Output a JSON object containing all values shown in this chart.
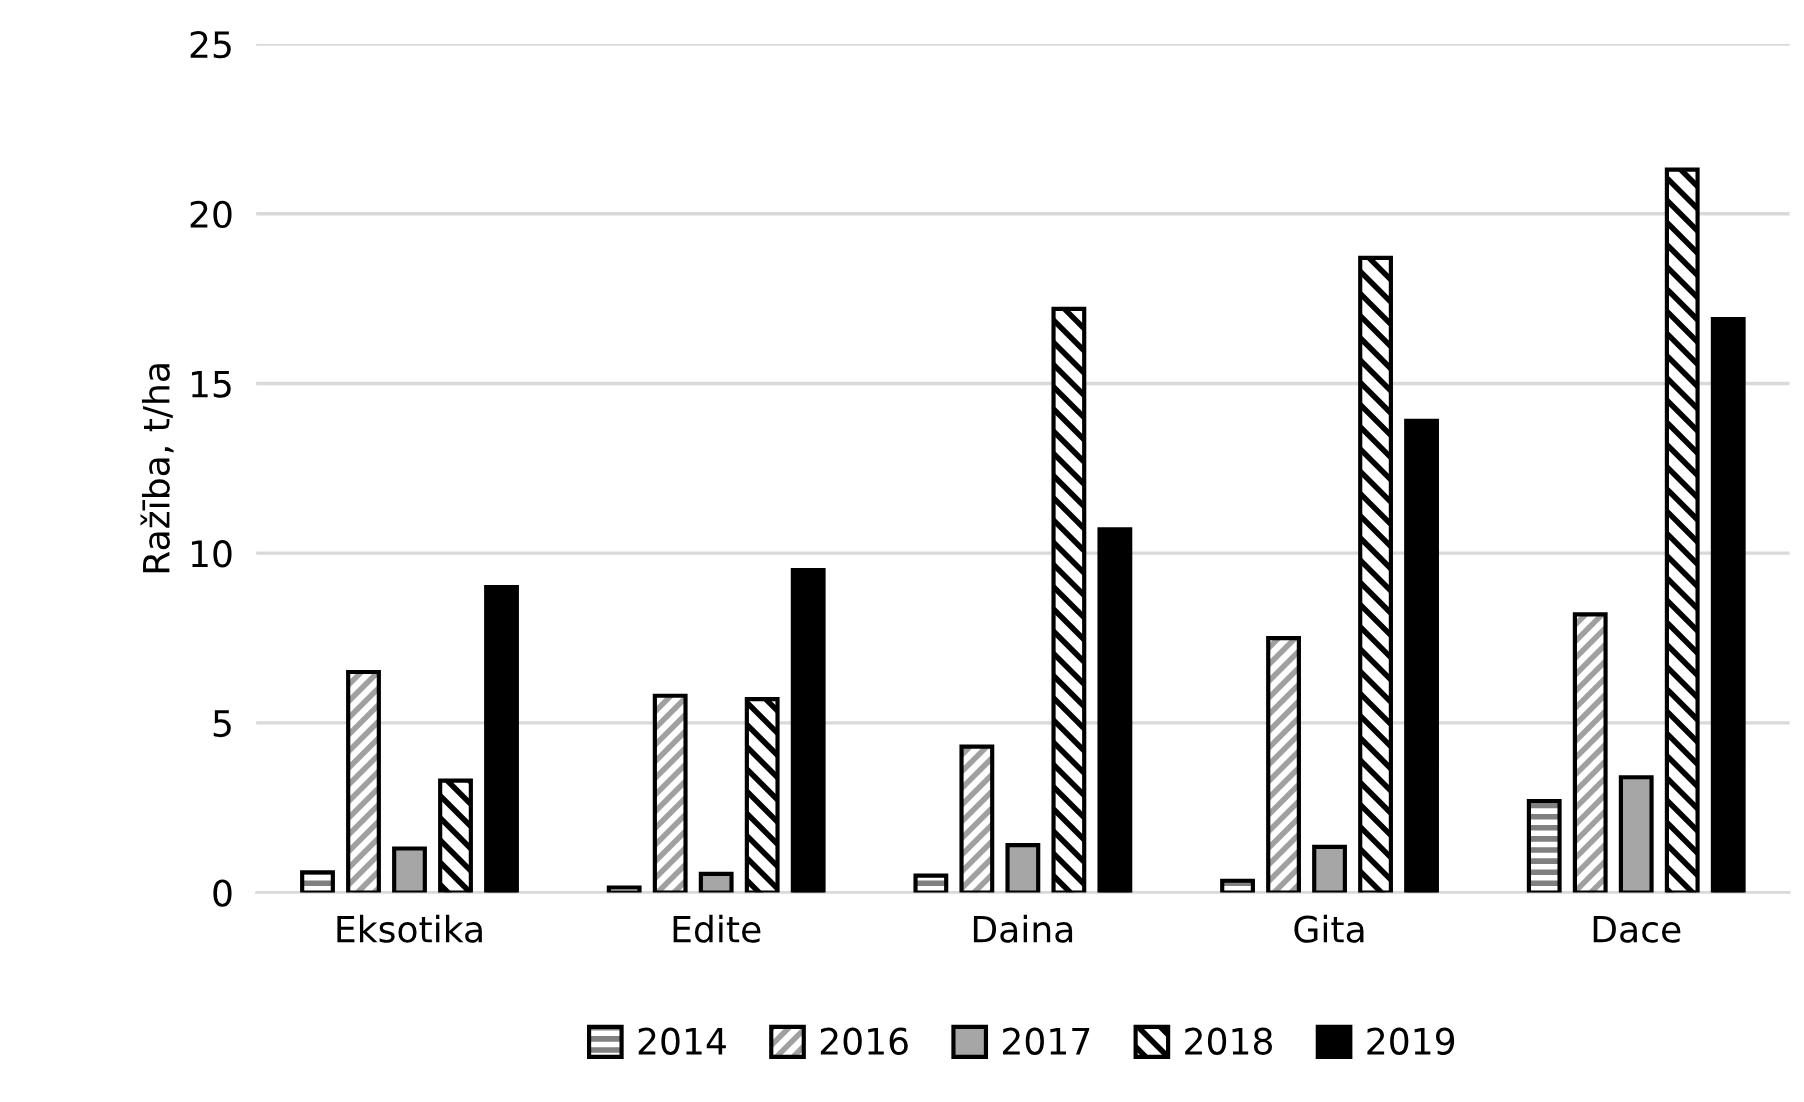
{
  "chart_data": {
    "type": "bar",
    "ylabel": "Ražība, t/ha",
    "categories": [
      "Eksotika",
      "Edite",
      "Daina",
      "Gita",
      "Dace"
    ],
    "series": [
      {
        "name": "2014",
        "color": "#000000",
        "values": [
          0.6,
          0.15,
          0.5,
          0.35,
          2.7
        ]
      },
      {
        "name": "2016",
        "color": "#000000",
        "values": [
          6.5,
          5.8,
          4.3,
          7.5,
          8.2
        ]
      },
      {
        "name": "2017",
        "color": "#a6a6a6",
        "values": [
          1.3,
          0.55,
          1.4,
          1.35,
          3.4
        ]
      },
      {
        "name": "2018",
        "color": "#000000",
        "values": [
          3.3,
          5.7,
          17.2,
          18.7,
          21.3
        ]
      },
      {
        "name": "2019",
        "color": "#000000",
        "values": [
          9.0,
          9.5,
          10.7,
          13.9,
          16.9
        ]
      }
    ],
    "ylim": [
      0,
      25
    ],
    "yticks": [
      0,
      5,
      10,
      15,
      20,
      25
    ],
    "grid": "y",
    "legend": "bottom"
  }
}
